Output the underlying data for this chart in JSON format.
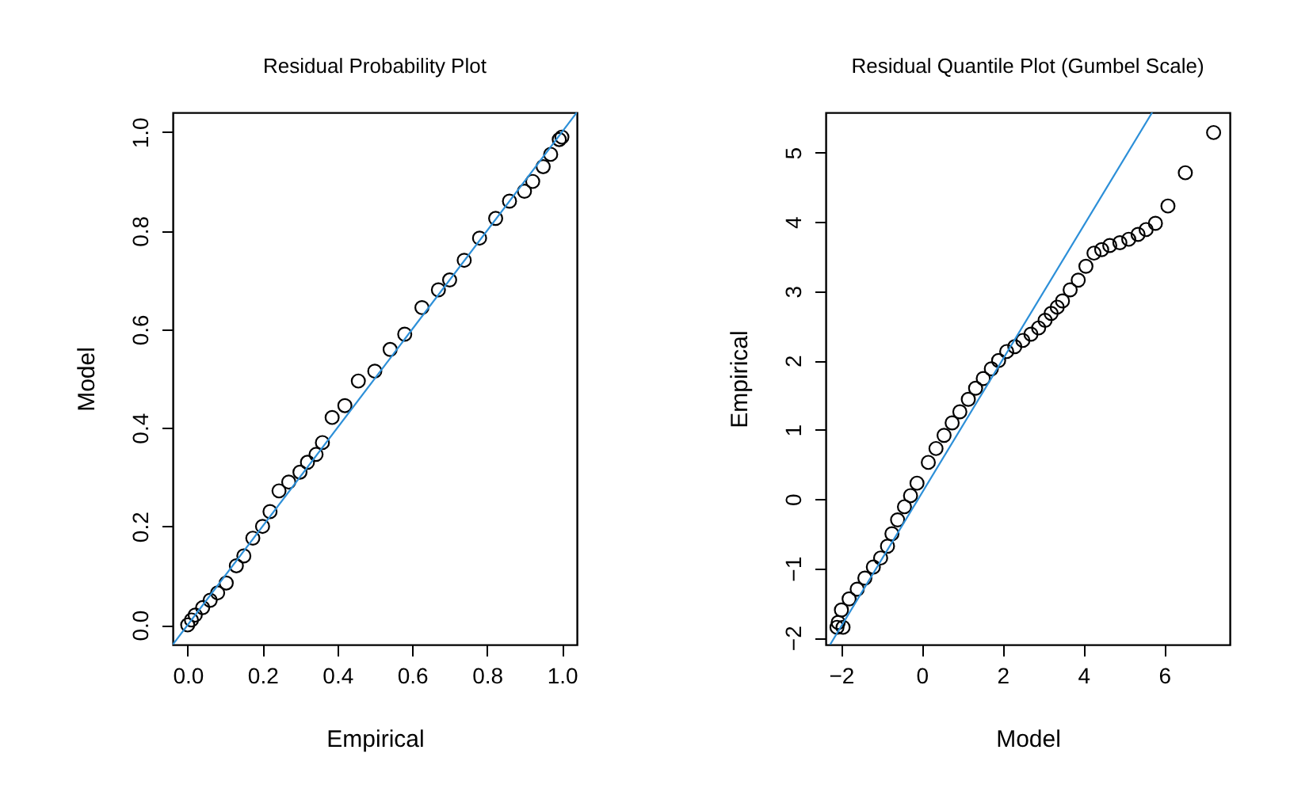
{
  "chart_data": [
    {
      "type": "scatter",
      "title": "Residual Probability Plot",
      "xlabel": "Empirical",
      "ylabel": "Model",
      "xlim": [
        -0.04,
        1.04
      ],
      "ylim": [
        -0.04,
        1.04
      ],
      "xticks": [
        {
          "value": 0,
          "label": "0.0"
        },
        0.2,
        0.4,
        0.6,
        0.8,
        {
          "value": 1,
          "label": "1.0"
        }
      ],
      "yticks": [
        {
          "value": 0,
          "label": "0.0"
        },
        0.2,
        0.4,
        0.6,
        0.8,
        {
          "value": 1,
          "label": "1.0"
        }
      ],
      "grid": false,
      "series": [
        {
          "marker": "circle",
          "color": "#000000",
          "x": [
            0.0,
            0.01,
            0.02,
            0.04,
            0.06,
            0.08,
            0.103,
            0.13,
            0.15,
            0.174,
            0.2,
            0.22,
            0.244,
            0.27,
            0.3,
            0.32,
            0.343,
            0.36,
            0.386,
            0.42,
            0.456,
            0.5,
            0.541,
            0.58,
            0.626,
            0.67,
            0.7,
            0.739,
            0.78,
            0.823,
            0.86,
            0.9,
            0.922,
            0.95,
            0.97,
            0.993,
            1.0
          ],
          "values": [
            0.0,
            0.01,
            0.02,
            0.035,
            0.05,
            0.065,
            0.085,
            0.12,
            0.14,
            0.176,
            0.2,
            0.23,
            0.272,
            0.29,
            0.31,
            0.33,
            0.346,
            0.37,
            0.421,
            0.445,
            0.495,
            0.515,
            0.559,
            0.59,
            0.644,
            0.68,
            0.7,
            0.74,
            0.785,
            0.825,
            0.86,
            0.88,
            0.9,
            0.93,
            0.955,
            0.985,
            0.99
          ]
        },
        {
          "type": "line",
          "color": "#2c8fd8",
          "x": [
            -0.04,
            1.04
          ],
          "values": [
            -0.04,
            1.04
          ]
        }
      ]
    },
    {
      "type": "scatter",
      "title": "Residual Quantile Plot (Gumbel Scale)",
      "xlabel": "Model",
      "ylabel": "Empirical",
      "xlim": [
        -2.38,
        7.62
      ],
      "ylim": [
        -2.1,
        5.58
      ],
      "xticks": [
        {
          "value": -2,
          "label": "−2"
        },
        0,
        2,
        4,
        6
      ],
      "yticks": [
        {
          "value": -2,
          "label": "−2"
        },
        {
          "value": -1,
          "label": "−1"
        },
        0,
        1,
        2,
        3,
        4,
        5
      ],
      "grid": false,
      "series": [
        {
          "marker": "circle",
          "color": "#000000",
          "x": [
            -2.1,
            -1.95,
            -2.07,
            -1.99,
            -1.8,
            -1.6,
            -1.41,
            -1.2,
            -1.02,
            -0.85,
            -0.74,
            -0.6,
            -0.43,
            -0.28,
            -0.12,
            0.16,
            0.35,
            0.55,
            0.75,
            0.94,
            1.15,
            1.33,
            1.52,
            1.72,
            1.9,
            2.1,
            2.3,
            2.5,
            2.7,
            2.89,
            3.05,
            3.2,
            3.35,
            3.48,
            3.67,
            3.87,
            4.06,
            4.26,
            4.45,
            4.65,
            4.9,
            5.12,
            5.35,
            5.55,
            5.78,
            6.09,
            6.52,
            7.22
          ],
          "values": [
            -1.85,
            -1.85,
            -1.78,
            -1.6,
            -1.44,
            -1.3,
            -1.14,
            -0.98,
            -0.85,
            -0.68,
            -0.5,
            -0.3,
            -0.11,
            0.05,
            0.23,
            0.53,
            0.73,
            0.92,
            1.1,
            1.26,
            1.44,
            1.6,
            1.74,
            1.88,
            2.0,
            2.13,
            2.2,
            2.29,
            2.38,
            2.47,
            2.58,
            2.68,
            2.77,
            2.86,
            3.02,
            3.16,
            3.36,
            3.55,
            3.6,
            3.66,
            3.7,
            3.75,
            3.82,
            3.89,
            3.98,
            4.23,
            4.71,
            5.29
          ]
        },
        {
          "type": "line",
          "color": "#2c8fd8",
          "x": [
            -2.27,
            5.7
          ],
          "values": [
            -2.1,
            5.58
          ]
        }
      ]
    }
  ]
}
